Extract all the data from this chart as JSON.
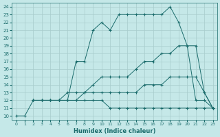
{
  "xlabel": "Humidex (Indice chaleur)",
  "background_color": "#c5e8e8",
  "grid_color": "#a8cccc",
  "line_color": "#1a6b6b",
  "xlim": [
    -0.5,
    23.5
  ],
  "ylim": [
    9.5,
    24.5
  ],
  "xticks": [
    0,
    1,
    2,
    3,
    4,
    5,
    6,
    7,
    8,
    9,
    10,
    11,
    12,
    13,
    14,
    15,
    16,
    17,
    18,
    19,
    20,
    21,
    22,
    23
  ],
  "yticks": [
    10,
    11,
    12,
    13,
    14,
    15,
    16,
    17,
    18,
    19,
    20,
    21,
    22,
    23,
    24
  ],
  "series": [
    {
      "x": [
        0,
        1,
        2,
        3,
        4,
        5,
        6,
        7,
        8,
        9,
        10,
        11,
        12,
        13,
        14,
        15,
        16,
        17,
        18,
        19,
        20,
        21,
        22,
        23
      ],
      "y": [
        10,
        10,
        12,
        12,
        12,
        12,
        12,
        12,
        12,
        12,
        12,
        11,
        11,
        11,
        11,
        11,
        11,
        11,
        11,
        11,
        11,
        11,
        11,
        11
      ]
    },
    {
      "x": [
        2,
        3,
        4,
        5,
        6,
        7,
        8,
        9,
        10,
        11,
        12,
        13,
        14,
        15,
        16,
        17,
        18,
        19,
        20,
        21,
        22,
        23
      ],
      "y": [
        12,
        12,
        12,
        12,
        12,
        12,
        13,
        13,
        13,
        13,
        13,
        13,
        13,
        14,
        14,
        14,
        15,
        15,
        15,
        15,
        13,
        11
      ]
    },
    {
      "x": [
        2,
        3,
        4,
        5,
        6,
        7,
        8,
        9,
        10,
        11,
        12,
        13,
        14,
        15,
        16,
        17,
        18,
        19,
        20,
        21,
        22,
        23
      ],
      "y": [
        12,
        12,
        12,
        12,
        13,
        13,
        13,
        14,
        15,
        15,
        15,
        15,
        16,
        17,
        17,
        18,
        18,
        19,
        19,
        19,
        13,
        11
      ]
    },
    {
      "x": [
        2,
        3,
        4,
        5,
        6,
        7,
        8,
        9,
        10,
        11,
        12,
        13,
        14,
        15,
        16,
        17,
        18,
        19,
        20,
        21,
        22,
        23
      ],
      "y": [
        12,
        12,
        12,
        12,
        12,
        17,
        17,
        21,
        22,
        21,
        23,
        23,
        23,
        23,
        23,
        23,
        24,
        22,
        19,
        12,
        12,
        11
      ]
    }
  ]
}
